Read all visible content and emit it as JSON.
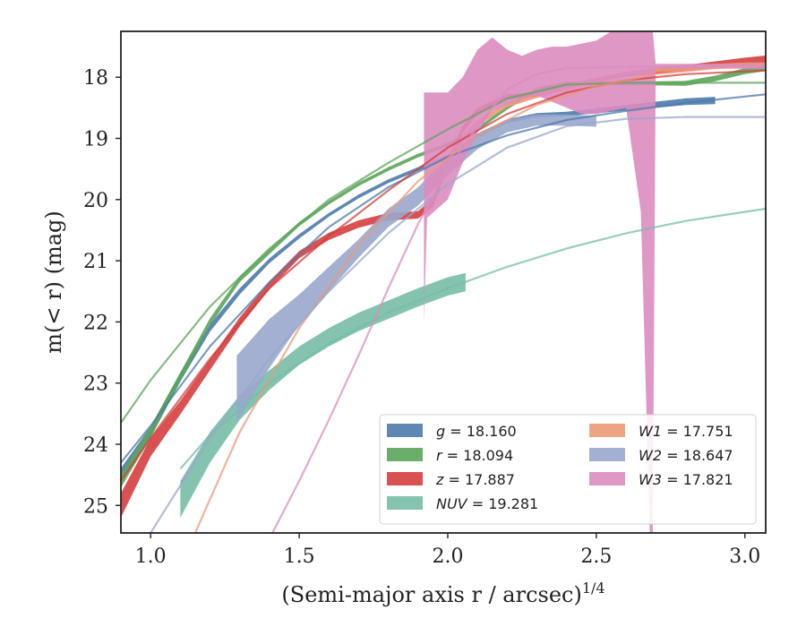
{
  "chart_data": {
    "type": "line",
    "xlabel": "(Semi-major axis r / arcsec)",
    "xlabel_sup": "1/4",
    "ylabel": "m(< r) (mag)",
    "xlim": [
      0.9,
      3.07
    ],
    "ylim": [
      25.45,
      17.25
    ],
    "y_inverted": true,
    "grid": false,
    "legend_placement": "lower-right",
    "x_ticks": [
      "1.0",
      "1.5",
      "2.0",
      "2.5",
      "3.0"
    ],
    "y_ticks": [
      "18",
      "19",
      "20",
      "21",
      "22",
      "23",
      "24",
      "25"
    ],
    "series": [
      {
        "name": "g = 18.160",
        "label_var": "g",
        "label_val": "18.160",
        "color": "#4c7bab",
        "data_x": [
          0.9,
          1.0,
          1.1,
          1.2,
          1.3,
          1.4,
          1.5,
          1.6,
          1.7,
          1.8,
          1.9,
          2.0,
          2.1,
          2.2,
          2.3,
          2.4,
          2.5,
          2.6,
          2.7,
          2.8,
          2.9
        ],
        "data_y": [
          24.5,
          23.8,
          22.9,
          22.1,
          21.5,
          21.0,
          20.6,
          20.25,
          19.95,
          19.7,
          19.5,
          19.3,
          18.95,
          18.72,
          18.62,
          18.6,
          18.55,
          18.5,
          18.45,
          18.4,
          18.38
        ],
        "data_width": [
          0.22,
          0.18,
          0.15,
          0.12,
          0.1,
          0.08,
          0.07,
          0.06,
          0.06,
          0.06,
          0.06,
          0.06,
          0.06,
          0.06,
          0.07,
          0.07,
          0.08,
          0.09,
          0.1,
          0.11,
          0.12
        ],
        "model_x": [
          0.9,
          1.0,
          1.2,
          1.4,
          1.6,
          1.8,
          2.0,
          2.2,
          2.4,
          2.6,
          2.8,
          3.07
        ],
        "model_y": [
          24.3,
          23.7,
          22.4,
          21.35,
          20.45,
          19.8,
          19.3,
          18.95,
          18.7,
          18.55,
          18.42,
          18.28
        ]
      },
      {
        "name": "r = 18.094",
        "label_var": "r",
        "label_val": "18.094",
        "color": "#5ba55a",
        "data_x": [
          0.9,
          1.0,
          1.1,
          1.2,
          1.3,
          1.4,
          1.5,
          1.6,
          1.7,
          1.8,
          1.9,
          2.0,
          2.1,
          2.2,
          2.3,
          2.4,
          2.5,
          2.6,
          2.7,
          2.8,
          2.9,
          3.0,
          3.07
        ],
        "data_y": [
          24.6,
          23.8,
          22.9,
          22.0,
          21.3,
          20.85,
          20.4,
          20.05,
          19.75,
          19.5,
          19.28,
          19.1,
          18.85,
          18.5,
          18.2,
          18.1,
          18.1,
          18.1,
          18.1,
          18.1,
          18.02,
          17.9,
          17.85
        ],
        "data_width": [
          0.22,
          0.18,
          0.15,
          0.12,
          0.1,
          0.08,
          0.07,
          0.06,
          0.06,
          0.06,
          0.06,
          0.06,
          0.06,
          0.06,
          0.06,
          0.06,
          0.06,
          0.06,
          0.07,
          0.08,
          0.09,
          0.1,
          0.1
        ],
        "model_x": [
          0.9,
          1.0,
          1.2,
          1.4,
          1.6,
          1.8,
          2.0,
          2.2,
          2.4,
          2.6,
          2.8,
          3.07
        ],
        "model_y": [
          23.65,
          22.95,
          21.75,
          20.8,
          20.0,
          19.4,
          18.85,
          18.35,
          18.12,
          18.09,
          18.09,
          18.09
        ]
      },
      {
        "name": "z = 17.887",
        "label_var": "z",
        "label_val": "17.887",
        "color": "#d53e3e",
        "data_x": [
          0.9,
          1.0,
          1.1,
          1.2,
          1.3,
          1.4,
          1.5,
          1.6,
          1.7,
          1.8,
          1.9,
          1.95,
          2.0,
          2.05,
          2.1,
          2.2,
          2.3,
          2.4,
          2.5,
          2.6,
          2.7,
          2.8,
          2.9,
          3.0,
          3.07
        ],
        "data_y": [
          25.0,
          24.05,
          23.4,
          22.7,
          22.0,
          21.4,
          20.9,
          20.6,
          20.4,
          20.28,
          20.25,
          20.05,
          19.4,
          18.85,
          18.55,
          18.32,
          18.28,
          18.15,
          18.05,
          17.95,
          17.9,
          17.85,
          17.8,
          17.75,
          17.72
        ],
        "data_width": [
          0.4,
          0.3,
          0.22,
          0.18,
          0.15,
          0.13,
          0.12,
          0.12,
          0.12,
          0.12,
          0.12,
          0.15,
          0.15,
          0.12,
          0.1,
          0.08,
          0.08,
          0.08,
          0.08,
          0.08,
          0.08,
          0.1,
          0.12,
          0.14,
          0.15
        ],
        "model_x": [
          0.9,
          1.0,
          1.2,
          1.4,
          1.6,
          1.8,
          2.0,
          2.2,
          2.4,
          2.6,
          2.8,
          3.07
        ],
        "model_y": [
          24.6,
          23.9,
          22.6,
          21.45,
          20.6,
          19.85,
          19.15,
          18.6,
          18.25,
          18.05,
          17.95,
          17.89
        ]
      },
      {
        "name": "NUV = 19.281",
        "label_var": "NUV",
        "label_val": "19.281",
        "color": "#76bda6",
        "data_x": [
          1.1,
          1.2,
          1.3,
          1.4,
          1.5,
          1.6,
          1.7,
          1.8,
          1.9,
          2.0,
          2.06
        ],
        "data_y": [
          24.9,
          24.05,
          23.4,
          22.95,
          22.55,
          22.25,
          22.0,
          21.8,
          21.6,
          21.42,
          21.35
        ],
        "data_width": [
          0.6,
          0.5,
          0.4,
          0.32,
          0.3,
          0.3,
          0.3,
          0.3,
          0.3,
          0.3,
          0.3
        ],
        "model_x": [
          1.1,
          1.2,
          1.4,
          1.6,
          1.8,
          2.0,
          2.2,
          2.4,
          2.6,
          2.8,
          3.07
        ],
        "model_y": [
          24.4,
          23.85,
          23.0,
          22.35,
          21.85,
          21.45,
          21.1,
          20.8,
          20.55,
          20.35,
          20.15
        ]
      },
      {
        "name": "W1 = 17.751",
        "label_var": "W1",
        "label_val": "17.751",
        "color": "#eb9a76",
        "data_x": [
          1.95,
          2.0,
          2.05,
          2.1,
          2.2,
          2.3,
          2.4,
          2.5,
          2.6,
          2.7,
          2.8,
          2.9,
          3.0,
          3.07
        ],
        "data_y": [
          19.75,
          19.35,
          19.0,
          18.75,
          18.45,
          18.3,
          18.15,
          18.05,
          17.95,
          17.88,
          17.85,
          17.82,
          17.8,
          17.8
        ],
        "data_width": [
          0.2,
          0.15,
          0.12,
          0.1,
          0.08,
          0.08,
          0.08,
          0.08,
          0.08,
          0.08,
          0.08,
          0.08,
          0.08,
          0.08
        ],
        "model_x": [
          1.15,
          1.3,
          1.5,
          1.7,
          1.9,
          2.1,
          2.3,
          2.5,
          2.7,
          2.9,
          3.07
        ],
        "model_y": [
          25.45,
          23.8,
          22.1,
          20.75,
          19.7,
          18.95,
          18.45,
          18.15,
          17.95,
          17.85,
          17.8
        ]
      },
      {
        "name": "W2 = 18.647",
        "label_var": "W2",
        "label_val": "18.647",
        "color": "#99a7cc",
        "data_x": [
          1.29,
          1.4,
          1.5,
          1.6,
          1.7,
          1.8,
          1.9,
          2.0,
          2.1,
          2.2,
          2.3,
          2.4,
          2.5
        ],
        "data_y": [
          23.1,
          22.35,
          21.8,
          21.3,
          20.8,
          20.3,
          19.95,
          19.45,
          19.05,
          18.8,
          18.7,
          18.7,
          18.72
        ],
        "data_width": [
          1.1,
          0.8,
          0.5,
          0.4,
          0.3,
          0.3,
          0.3,
          0.3,
          0.25,
          0.2,
          0.18,
          0.18,
          0.18
        ],
        "model_x": [
          1.0,
          1.2,
          1.4,
          1.6,
          1.8,
          2.0,
          2.2,
          2.4,
          2.6,
          2.8,
          3.07
        ],
        "model_y": [
          25.45,
          23.9,
          22.6,
          21.5,
          20.55,
          19.75,
          19.15,
          18.8,
          18.68,
          18.65,
          18.65
        ]
      },
      {
        "name": "W3 = 17.821",
        "label_var": "W3",
        "label_val": "17.821",
        "color": "#db8cbf",
        "band_x": [
          1.92,
          1.93,
          2.0,
          2.05,
          2.1,
          2.15,
          2.2,
          2.25,
          2.3,
          2.35,
          2.4,
          2.45,
          2.5,
          2.55,
          2.6,
          2.65,
          2.68,
          2.69,
          2.7,
          2.75,
          2.8,
          2.85,
          2.9,
          2.95,
          3.0,
          3.07
        ],
        "band_upper": [
          18.25,
          18.25,
          18.25,
          18.0,
          17.55,
          17.35,
          17.55,
          17.65,
          17.55,
          17.5,
          17.5,
          17.45,
          17.4,
          17.25,
          17.25,
          17.25,
          17.25,
          17.25,
          17.78,
          17.78,
          17.78,
          17.78,
          17.78,
          17.78,
          17.78,
          17.78
        ],
        "band_lower": [
          22.0,
          20.3,
          20.0,
          19.4,
          18.9,
          18.55,
          18.45,
          18.35,
          18.3,
          18.4,
          18.5,
          18.6,
          18.6,
          18.55,
          18.5,
          20.2,
          25.45,
          25.45,
          17.86,
          17.86,
          17.86,
          17.86,
          17.86,
          17.86,
          17.86,
          17.86
        ],
        "model_x": [
          1.41,
          1.5,
          1.6,
          1.7,
          1.8,
          1.9,
          2.0,
          2.1,
          2.2,
          2.3,
          2.4,
          2.6,
          2.8,
          3.07
        ],
        "model_y": [
          25.45,
          24.6,
          23.6,
          22.55,
          21.45,
          20.4,
          19.5,
          18.8,
          18.2,
          17.95,
          17.85,
          17.83,
          17.82,
          17.82
        ]
      }
    ]
  }
}
